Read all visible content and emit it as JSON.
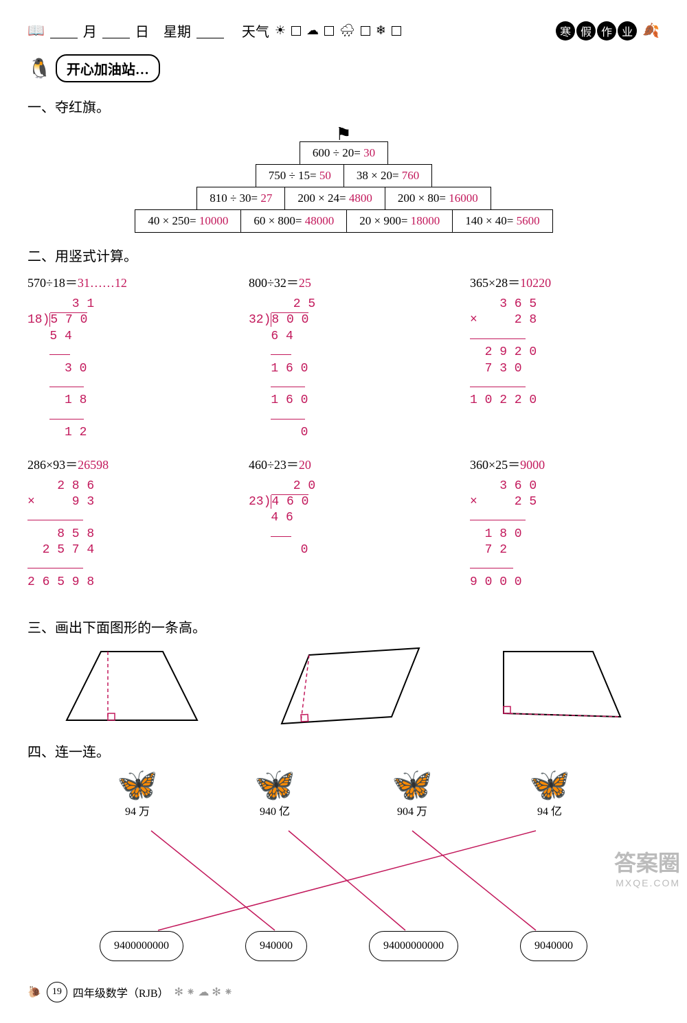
{
  "header": {
    "month_label": "月",
    "day_label": "日",
    "week_label": "星期",
    "weather_label": "天气",
    "badge": [
      "寒",
      "假",
      "作",
      "业"
    ]
  },
  "station_label": "开心加油站…",
  "sections": {
    "s1_title": "一、夺红旗。",
    "s2_title": "二、用竖式计算。",
    "s3_title": "三、画出下面图形的一条高。",
    "s4_title": "四、连一连。"
  },
  "pyramid": {
    "rows": [
      [
        {
          "q": "600 ÷ 20=",
          "a": "30"
        }
      ],
      [
        {
          "q": "750 ÷ 15=",
          "a": "50"
        },
        {
          "q": "38 × 20=",
          "a": "760"
        }
      ],
      [
        {
          "q": "810 ÷ 30=",
          "a": "27"
        },
        {
          "q": "200 × 24=",
          "a": "4800"
        },
        {
          "q": "200 × 80=",
          "a": "16000"
        }
      ],
      [
        {
          "q": "40 × 250=",
          "a": "10000"
        },
        {
          "q": "60 × 800=",
          "a": "48000"
        },
        {
          "q": "20 × 900=",
          "a": "18000"
        },
        {
          "q": "140 × 40=",
          "a": "5600"
        }
      ]
    ]
  },
  "calcs": {
    "row1": [
      {
        "eq": "570÷18＝",
        "ans": "31……12",
        "type": "div",
        "divisor": "18",
        "dividend": "5 7 0",
        "quot": "3 1",
        "lines": [
          "5 4",
          "  3 0",
          "  1 8",
          "  1 2"
        ]
      },
      {
        "eq": "800÷32＝",
        "ans": "25",
        "type": "div",
        "divisor": "32",
        "dividend": "8 0 0",
        "quot": "2 5",
        "lines": [
          "6 4",
          "1 6 0",
          "1 6 0",
          "    0"
        ]
      },
      {
        "eq": "365×28＝",
        "ans": "10220",
        "type": "mul",
        "top": "3 6 5",
        "bot": "  2 8",
        "lines": [
          "2 9 2 0",
          "7 3 0  ",
          "1 0 2 2 0"
        ]
      }
    ],
    "row2": [
      {
        "eq": "286×93＝",
        "ans": "26598",
        "type": "mul",
        "top": "2 8 6",
        "bot": "  9 3",
        "lines": [
          "  8 5 8",
          "2 5 7 4",
          "2 6 5 9 8"
        ]
      },
      {
        "eq": "460÷23＝",
        "ans": "20",
        "type": "div",
        "divisor": "23",
        "dividend": "4 6 0",
        "quot": "2 0",
        "lines": [
          "4 6",
          "    0"
        ]
      },
      {
        "eq": "360×25＝",
        "ans": "9000",
        "type": "mul",
        "top": "3 6 0",
        "bot": "  2 5",
        "lines": [
          "1 8 0",
          "7 2  ",
          "9 0 0 0"
        ]
      }
    ]
  },
  "shapes": {
    "answer_color": "#c2185b",
    "stroke": "#000"
  },
  "match": {
    "top_labels": [
      "94 万",
      "940 亿",
      "904 万",
      "94 亿"
    ],
    "bottom_labels": [
      "9400000000",
      "940000",
      "94000000000",
      "9040000"
    ],
    "lines": [
      {
        "from": 0,
        "to": 1
      },
      {
        "from": 1,
        "to": 2
      },
      {
        "from": 2,
        "to": 3
      },
      {
        "from": 3,
        "to": 0
      }
    ],
    "top_x": [
      120,
      320,
      500,
      680
    ],
    "bot_x": [
      130,
      300,
      490,
      680
    ]
  },
  "footer": {
    "page": "19",
    "label": "四年级数学（RJB）"
  },
  "watermark": {
    "cn": "答案圈",
    "en": "MXQE.COM"
  }
}
